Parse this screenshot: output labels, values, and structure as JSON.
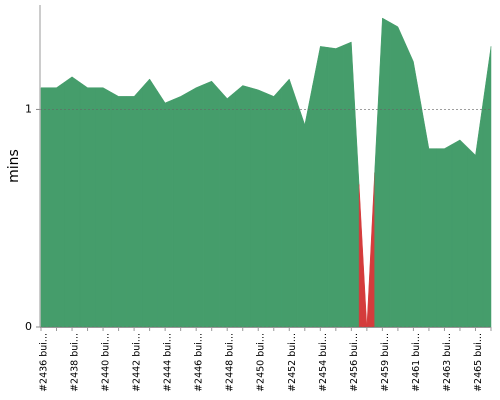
{
  "chart_data": {
    "type": "area",
    "y_label": "mins",
    "categories": [
      "#2436 bui...",
      null,
      "#2438 bui...",
      null,
      "#2440 bui...",
      null,
      "#2442 bui...",
      null,
      "#2444 bui...",
      null,
      "#2446 bui...",
      null,
      "#2448 bui...",
      null,
      "#2450 bui...",
      null,
      "#2452 bui...",
      null,
      "#2454 bui...",
      null,
      "#2456 bui...",
      null,
      "#2459 bui...",
      null,
      "#2461 bui...",
      null,
      "#2463 bui...",
      null,
      "#2465 bui...",
      null
    ],
    "series": [
      {
        "values": [
          1.1,
          1.1,
          1.15,
          1.1,
          1.1,
          1.06,
          1.06,
          1.14,
          1.03,
          1.06,
          1.1,
          1.13,
          1.05,
          1.11,
          1.09,
          1.06,
          1.14,
          0.93,
          1.29,
          1.28,
          1.31,
          0,
          1.42,
          1.38,
          1.22,
          0.82,
          0.82,
          0.86,
          0.79,
          1.29
        ],
        "colors": [
          "#459d6b",
          "#459d6b",
          "#459d6b",
          "#459d6b",
          "#459d6b",
          "#459d6b",
          "#459d6b",
          "#459d6b",
          "#459d6b",
          "#459d6b",
          "#459d6b",
          "#459d6b",
          "#459d6b",
          "#459d6b",
          "#459d6b",
          "#459d6b",
          "#459d6b",
          "#459d6b",
          "#459d6b",
          "#459d6b",
          "#459d6b",
          "#d43c3c",
          "#459d6b",
          "#459d6b",
          "#459d6b",
          "#459d6b",
          "#459d6b",
          "#459d6b",
          "#459d6b",
          "#459d6b"
        ]
      }
    ],
    "ylim": [
      0,
      1.48
    ],
    "yticks": [
      0,
      1
    ],
    "grid": true
  }
}
